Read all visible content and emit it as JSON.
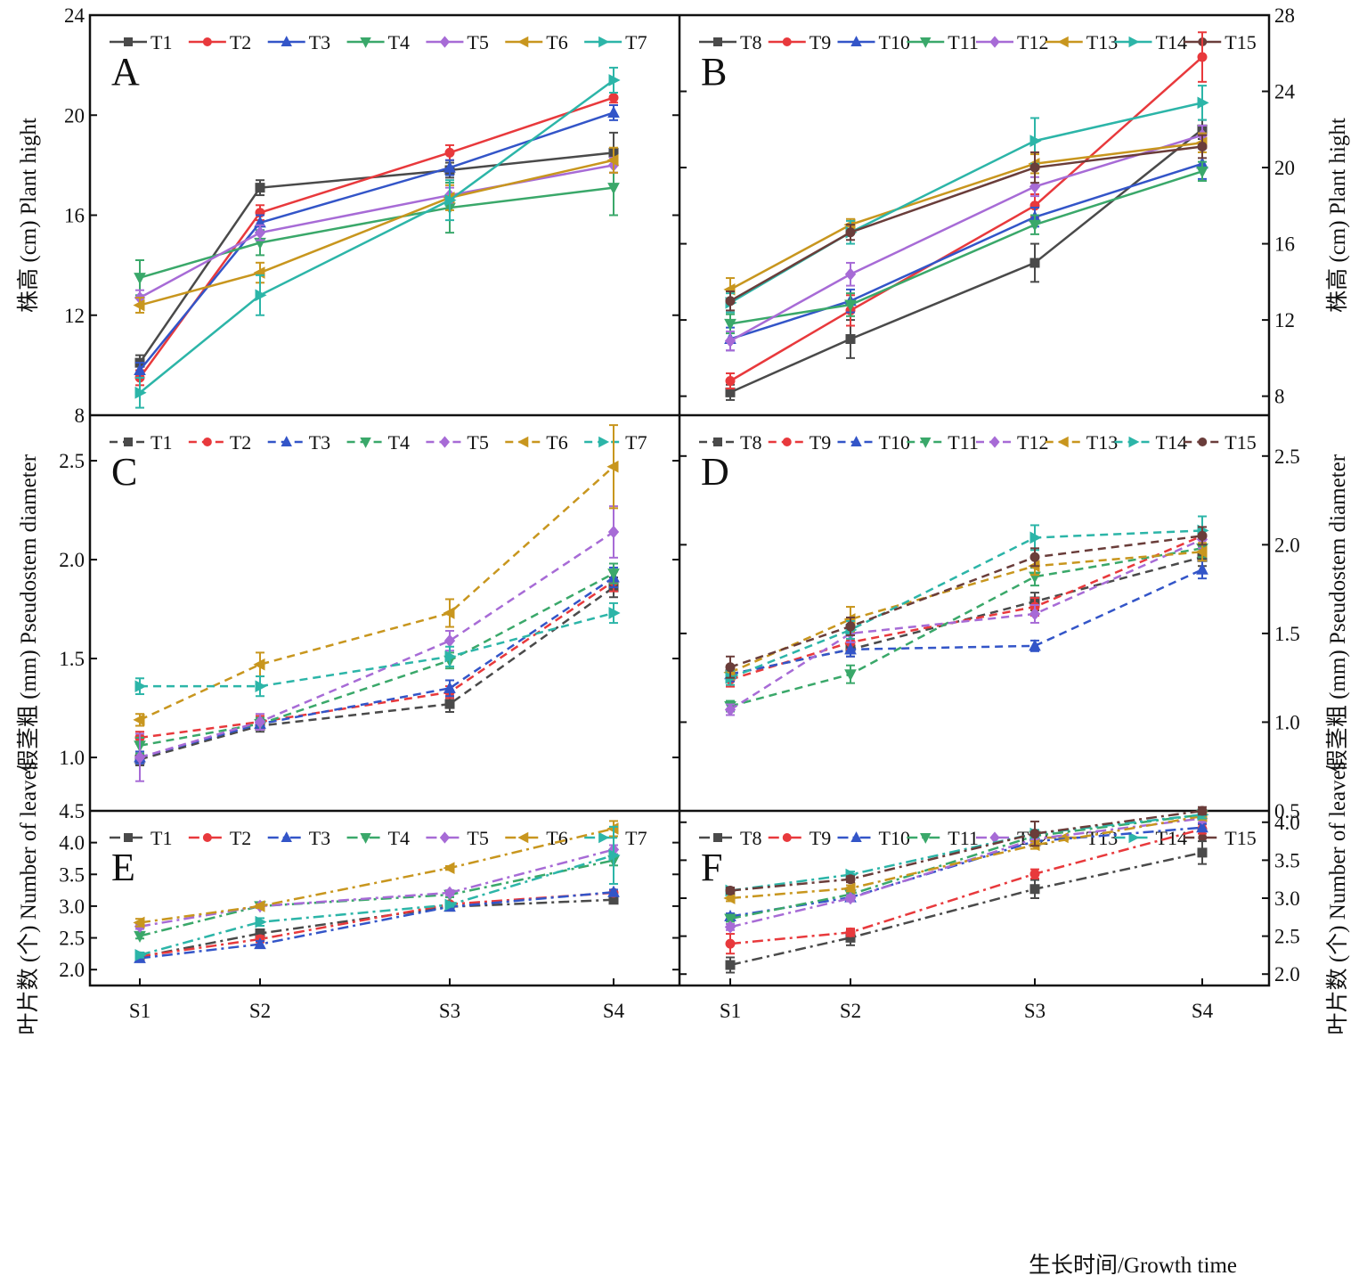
{
  "x_label": "生长时间/Growth time",
  "chart_data": [
    {
      "panel": "A",
      "type": "line",
      "line_style": "solid",
      "ylabel": "株高 (cm) Plant hight",
      "ylim": [
        8,
        24
      ],
      "yticks": [
        "8",
        "12",
        "16",
        "20",
        "24"
      ],
      "categories": [
        "S1",
        "S2",
        "S3",
        "S4"
      ],
      "series": [
        {
          "name": "T1",
          "color": "#4a4a4a",
          "marker": "square",
          "values": [
            10.1,
            17.1,
            17.8,
            18.5
          ],
          "err": [
            0.3,
            0.3,
            0.3,
            0.8
          ]
        },
        {
          "name": "T2",
          "color": "#e8393c",
          "marker": "circle",
          "values": [
            9.5,
            16.1,
            18.5,
            20.7
          ],
          "err": [
            0.3,
            0.3,
            0.3,
            0.2
          ]
        },
        {
          "name": "T3",
          "color": "#3355c8",
          "marker": "tri-up",
          "values": [
            9.8,
            15.7,
            17.9,
            20.1
          ],
          "err": [
            0.3,
            0.3,
            0.3,
            0.3
          ]
        },
        {
          "name": "T4",
          "color": "#3aa86a",
          "marker": "tri-down",
          "values": [
            13.5,
            14.9,
            16.3,
            17.1
          ],
          "err": [
            0.7,
            0.5,
            1.0,
            1.1
          ]
        },
        {
          "name": "T5",
          "color": "#a76bd6",
          "marker": "diamond",
          "values": [
            12.7,
            15.3,
            16.8,
            18.0
          ],
          "err": [
            0.3,
            0.3,
            0.3,
            0.3
          ]
        },
        {
          "name": "T6",
          "color": "#c8961e",
          "marker": "tri-left",
          "values": [
            12.4,
            13.7,
            16.7,
            18.2
          ],
          "err": [
            0.3,
            0.4,
            0.5,
            0.5
          ]
        },
        {
          "name": "T7",
          "color": "#2cb5a8",
          "marker": "tri-right",
          "values": [
            8.9,
            12.8,
            16.6,
            21.4
          ],
          "err": [
            0.6,
            0.8,
            0.8,
            0.5
          ]
        }
      ]
    },
    {
      "panel": "B",
      "type": "line",
      "line_style": "solid",
      "ylabel": "株高 (cm) Plant hight",
      "ylim": [
        7,
        28
      ],
      "yticks": [
        "8",
        "12",
        "16",
        "20",
        "24",
        "28"
      ],
      "categories": [
        "S1",
        "S2",
        "S3",
        "S4"
      ],
      "series": [
        {
          "name": "T8",
          "color": "#4a4a4a",
          "marker": "square",
          "values": [
            8.2,
            11.0,
            15.0,
            22.0
          ],
          "err": [
            0.4,
            1.0,
            1.0,
            0.5
          ]
        },
        {
          "name": "T9",
          "color": "#e8393c",
          "marker": "circle",
          "values": [
            8.8,
            12.5,
            18.0,
            25.8
          ],
          "err": [
            0.4,
            0.8,
            0.6,
            1.3
          ]
        },
        {
          "name": "T10",
          "color": "#3355c8",
          "marker": "tri-up",
          "values": [
            11.0,
            13.0,
            17.4,
            20.2
          ],
          "err": [
            0.6,
            0.6,
            0.5,
            0.8
          ]
        },
        {
          "name": "T11",
          "color": "#3aa86a",
          "marker": "tri-down",
          "values": [
            11.8,
            12.8,
            17.0,
            19.8
          ],
          "err": [
            0.5,
            0.6,
            0.5,
            0.5
          ]
        },
        {
          "name": "T12",
          "color": "#a76bd6",
          "marker": "diamond",
          "values": [
            10.9,
            14.4,
            19.0,
            21.7
          ],
          "err": [
            0.5,
            0.6,
            0.5,
            0.5
          ]
        },
        {
          "name": "T13",
          "color": "#c8961e",
          "marker": "tri-left",
          "values": [
            13.6,
            17.0,
            20.2,
            21.3
          ],
          "err": [
            0.6,
            0.3,
            0.5,
            0.5
          ]
        },
        {
          "name": "T14",
          "color": "#2cb5a8",
          "marker": "tri-right",
          "values": [
            12.9,
            16.6,
            21.4,
            23.4
          ],
          "err": [
            0.5,
            0.6,
            1.2,
            0.9
          ]
        },
        {
          "name": "T15",
          "color": "#6a3d3a",
          "marker": "circle",
          "values": [
            13.0,
            16.6,
            20.0,
            21.1
          ],
          "err": [
            0.5,
            0.4,
            0.8,
            0.6
          ]
        }
      ]
    },
    {
      "panel": "C",
      "type": "line",
      "line_style": "dashed",
      "ylabel": "假茎粗 (mm) Pseudostem diameter",
      "ylim": [
        0.73,
        2.73
      ],
      "yticks": [
        "1.0",
        "1.5",
        "2.0",
        "2.5"
      ],
      "categories": [
        "S1",
        "S2",
        "S3",
        "S4"
      ],
      "series": [
        {
          "name": "T1",
          "color": "#4a4a4a",
          "marker": "square",
          "values": [
            0.99,
            1.16,
            1.27,
            1.86
          ],
          "err": [
            0.03,
            0.03,
            0.04,
            0.05
          ]
        },
        {
          "name": "T2",
          "color": "#e8393c",
          "marker": "circle",
          "values": [
            1.1,
            1.18,
            1.33,
            1.89
          ],
          "err": [
            0.03,
            0.03,
            0.03,
            0.05
          ]
        },
        {
          "name": "T3",
          "color": "#3355c8",
          "marker": "tri-up",
          "values": [
            1.0,
            1.17,
            1.35,
            1.91
          ],
          "err": [
            0.03,
            0.03,
            0.04,
            0.05
          ]
        },
        {
          "name": "T4",
          "color": "#3aa86a",
          "marker": "tri-down",
          "values": [
            1.06,
            1.17,
            1.49,
            1.93
          ],
          "err": [
            0.04,
            0.03,
            0.04,
            0.05
          ]
        },
        {
          "name": "T5",
          "color": "#a76bd6",
          "marker": "diamond",
          "values": [
            1.0,
            1.18,
            1.59,
            2.14
          ],
          "err": [
            0.12,
            0.04,
            0.05,
            0.13
          ]
        },
        {
          "name": "T6",
          "color": "#c8961e",
          "marker": "tri-left",
          "values": [
            1.19,
            1.47,
            1.73,
            2.47
          ],
          "err": [
            0.03,
            0.06,
            0.07,
            0.21
          ]
        },
        {
          "name": "T7",
          "color": "#2cb5a8",
          "marker": "tri-right",
          "values": [
            1.36,
            1.36,
            1.51,
            1.73
          ],
          "err": [
            0.04,
            0.05,
            0.05,
            0.05
          ]
        }
      ]
    },
    {
      "panel": "D",
      "type": "line",
      "line_style": "dashed",
      "ylabel": "假茎粗 (mm) Pseudostem diameter",
      "ylim": [
        0.5,
        2.73
      ],
      "yticks": [
        "0.5",
        "1.0",
        "1.5",
        "2.0",
        "2.5"
      ],
      "categories": [
        "S1",
        "S2",
        "S3",
        "S4"
      ],
      "series": [
        {
          "name": "T8",
          "color": "#4a4a4a",
          "marker": "square",
          "values": [
            1.27,
            1.41,
            1.68,
            1.93
          ],
          "err": [
            0.04,
            0.04,
            0.05,
            0.05
          ]
        },
        {
          "name": "T9",
          "color": "#e8393c",
          "marker": "circle",
          "values": [
            1.24,
            1.45,
            1.65,
            2.05
          ],
          "err": [
            0.04,
            0.04,
            0.05,
            0.05
          ]
        },
        {
          "name": "T10",
          "color": "#3355c8",
          "marker": "tri-up",
          "values": [
            1.27,
            1.41,
            1.43,
            1.86
          ],
          "err": [
            0.04,
            0.04,
            0.03,
            0.05
          ]
        },
        {
          "name": "T11",
          "color": "#3aa86a",
          "marker": "tri-down",
          "values": [
            1.09,
            1.27,
            1.82,
            1.98
          ],
          "err": [
            0.03,
            0.05,
            0.05,
            0.05
          ]
        },
        {
          "name": "T12",
          "color": "#a76bd6",
          "marker": "diamond",
          "values": [
            1.07,
            1.5,
            1.61,
            2.03
          ],
          "err": [
            0.03,
            0.05,
            0.05,
            0.05
          ]
        },
        {
          "name": "T13",
          "color": "#c8961e",
          "marker": "tri-left",
          "values": [
            1.28,
            1.58,
            1.88,
            1.96
          ],
          "err": [
            0.04,
            0.07,
            0.05,
            0.05
          ]
        },
        {
          "name": "T14",
          "color": "#2cb5a8",
          "marker": "tri-right",
          "values": [
            1.25,
            1.52,
            2.04,
            2.08
          ],
          "err": [
            0.04,
            0.05,
            0.07,
            0.08
          ]
        },
        {
          "name": "T15",
          "color": "#6a3d3a",
          "marker": "circle",
          "values": [
            1.31,
            1.54,
            1.93,
            2.05
          ],
          "err": [
            0.06,
            0.05,
            0.05,
            0.05
          ]
        }
      ]
    },
    {
      "panel": "E",
      "type": "line",
      "line_style": "dashdot",
      "ylabel": "叶片数 (个) Number of  leaves",
      "ylim": [
        1.75,
        4.5
      ],
      "yticks": [
        "2.0",
        "2.5",
        "3.0",
        "3.5",
        "4.0",
        "4.5"
      ],
      "categories": [
        "S1",
        "S2",
        "S3",
        "S4"
      ],
      "series": [
        {
          "name": "T1",
          "color": "#4a4a4a",
          "marker": "square",
          "values": [
            2.2,
            2.57,
            2.99,
            3.1
          ],
          "err": [
            0.04,
            0.05,
            0.03,
            0.04
          ]
        },
        {
          "name": "T2",
          "color": "#e8393c",
          "marker": "circle",
          "values": [
            2.21,
            2.48,
            3.03,
            3.21
          ],
          "err": [
            0.05,
            0.05,
            0.03,
            0.03
          ]
        },
        {
          "name": "T3",
          "color": "#3355c8",
          "marker": "tri-up",
          "values": [
            2.18,
            2.4,
            2.99,
            3.22
          ],
          "err": [
            0.04,
            0.05,
            0.03,
            0.04
          ]
        },
        {
          "name": "T4",
          "color": "#3aa86a",
          "marker": "tri-down",
          "values": [
            2.53,
            3.0,
            3.18,
            3.72
          ],
          "err": [
            0.04,
            0.03,
            0.04,
            0.08
          ]
        },
        {
          "name": "T5",
          "color": "#a76bd6",
          "marker": "diamond",
          "values": [
            2.68,
            3.0,
            3.21,
            3.89
          ],
          "err": [
            0.04,
            0.03,
            0.04,
            0.07
          ]
        },
        {
          "name": "T6",
          "color": "#c8961e",
          "marker": "tri-left",
          "values": [
            2.74,
            3.0,
            3.6,
            4.22
          ],
          "err": [
            0.06,
            0.03,
            0.03,
            0.12
          ]
        },
        {
          "name": "T7",
          "color": "#2cb5a8",
          "marker": "tri-right",
          "values": [
            2.23,
            2.75,
            3.02,
            3.8
          ],
          "err": [
            0.04,
            0.06,
            0.03,
            0.45
          ]
        }
      ]
    },
    {
      "panel": "F",
      "type": "line",
      "line_style": "dashdot",
      "ylabel": "叶片数 (个) Number of  leaves",
      "ylim": [
        1.85,
        4.15
      ],
      "yticks": [
        "2.0",
        "2.5",
        "3.0",
        "3.5",
        "4.0"
      ],
      "categories": [
        "S1",
        "S2",
        "S3",
        "S4"
      ],
      "series": [
        {
          "name": "T8",
          "color": "#4a4a4a",
          "marker": "square",
          "values": [
            2.12,
            2.48,
            3.12,
            3.6
          ],
          "err": [
            0.1,
            0.1,
            0.12,
            0.15
          ]
        },
        {
          "name": "T9",
          "color": "#e8393c",
          "marker": "circle",
          "values": [
            2.4,
            2.55,
            3.32,
            3.91
          ],
          "err": [
            0.13,
            0.05,
            0.06,
            0.06
          ]
        },
        {
          "name": "T10",
          "color": "#3355c8",
          "marker": "tri-up",
          "values": [
            2.76,
            3.01,
            3.75,
            3.93
          ],
          "err": [
            0.04,
            0.04,
            0.05,
            0.05
          ]
        },
        {
          "name": "T11",
          "color": "#3aa86a",
          "marker": "tri-down",
          "values": [
            2.73,
            3.05,
            3.82,
            4.1
          ],
          "err": [
            0.04,
            0.04,
            0.05,
            0.05
          ]
        },
        {
          "name": "T12",
          "color": "#a76bd6",
          "marker": "diamond",
          "values": [
            2.62,
            3.0,
            3.78,
            4.05
          ],
          "err": [
            0.04,
            0.04,
            0.05,
            0.05
          ]
        },
        {
          "name": "T13",
          "color": "#c8961e",
          "marker": "tri-left",
          "values": [
            3.0,
            3.13,
            3.7,
            4.08
          ],
          "err": [
            0.04,
            0.04,
            0.05,
            0.05
          ]
        },
        {
          "name": "T14",
          "color": "#2cb5a8",
          "marker": "tri-right",
          "values": [
            3.1,
            3.31,
            3.85,
            4.1
          ],
          "err": [
            0.04,
            0.04,
            0.05,
            0.05
          ]
        },
        {
          "name": "T15",
          "color": "#6a3d3a",
          "marker": "circle",
          "values": [
            3.1,
            3.25,
            3.85,
            4.15
          ],
          "err": [
            0.04,
            0.04,
            0.16,
            0.05
          ]
        }
      ]
    }
  ]
}
